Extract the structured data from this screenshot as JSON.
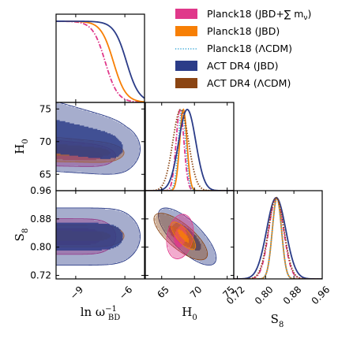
{
  "chart_data": {
    "type": "corner-plot",
    "parameters": [
      {
        "key": "lnw",
        "label_main": "ln ω",
        "label_sup": "−1",
        "label_sub": "BD",
        "range": [
          -10.2,
          -4.8
        ],
        "ticks": [
          -9,
          -6
        ],
        "tick_labels": [
          "−9",
          "−6"
        ]
      },
      {
        "key": "H0",
        "label_main": "H",
        "label_sub": "0",
        "range": [
          62.5,
          76
        ],
        "ticks": [
          65,
          70,
          75
        ],
        "tick_labels": [
          "65",
          "70",
          "75"
        ]
      },
      {
        "key": "S8",
        "label_main": "S",
        "label_sub": "8",
        "range": [
          0.71,
          0.96
        ],
        "ticks": [
          0.72,
          0.8,
          0.88,
          0.96
        ],
        "tick_labels": [
          "0.72",
          "0.80",
          "0.88",
          "0.96"
        ]
      }
    ],
    "legend": {
      "placement": "top-right",
      "entries": [
        {
          "label": "Planck18 (JBD+∑ m",
          "suffix_sub": "ν",
          "suffix_tail": ")",
          "color": "#e0388a",
          "style": "patch"
        },
        {
          "label": "Planck18 (JBD)",
          "color": "#f77f05",
          "style": "patch"
        },
        {
          "label": "Planck18 (ΛCDM)",
          "color": "#33a5d6",
          "style": "dotted-line"
        },
        {
          "label": "ACT DR4 (JBD)",
          "color": "#2b3c88",
          "style": "patch"
        },
        {
          "label": "ACT DR4 (ΛCDM)",
          "color": "#8b4513",
          "style": "patch"
        }
      ]
    },
    "series": [
      {
        "name": "Planck18 (JBD+∑ mν)",
        "color": "#e0388a",
        "lnw_cut": -7.2,
        "H0_mean": 67.8,
        "H0_sigma": 0.6,
        "S8_mean": 0.83,
        "S8_sigma": 0.021
      },
      {
        "name": "Planck18 (JBD)",
        "color": "#f77f05",
        "lnw_cut": -6.7,
        "H0_mean": 68.3,
        "H0_sigma": 0.55,
        "S8_mean": 0.832,
        "S8_sigma": 0.013
      },
      {
        "name": "Planck18 (ΛCDM)",
        "color": "#33a5d6",
        "H0_mean": 68.1,
        "H0_sigma": 0.55,
        "S8_mean": 0.832,
        "S8_sigma": 0.013
      },
      {
        "name": "ACT DR4 (JBD)",
        "color": "#2b3c88",
        "lnw_cut": -5.9,
        "H0_mean": 68.9,
        "H0_sigma": 1.3,
        "S8_mean": 0.83,
        "S8_sigma": 0.027
      },
      {
        "name": "ACT DR4 (ΛCDM)",
        "color": "#8b4513",
        "H0_mean": 67.9,
        "H0_sigma": 1.2,
        "S8_mean": 0.83,
        "S8_sigma": 0.022
      }
    ]
  }
}
